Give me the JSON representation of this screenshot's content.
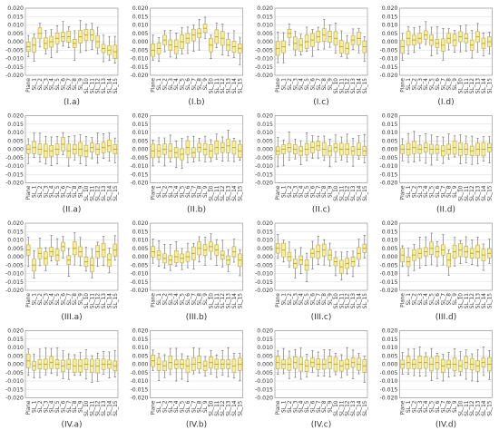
{
  "figure": {
    "colors": {
      "box_fill": "#f7ef9f",
      "box_stroke": "#b8a74a",
      "median": "#c8a200",
      "whisker": "#666666",
      "grid": "#d9d9d9",
      "frame": "#999999"
    }
  },
  "chart_data": [
    {
      "type": "box",
      "caption": "(I.a)",
      "categories": [
        "Plane",
        "SL_1",
        "SL_2",
        "SL_3",
        "SL_4",
        "SL_5",
        "SL_6",
        "SL_7",
        "SL_8",
        "SL_9",
        "SL_10",
        "SL_11",
        "SL_12",
        "SL_13",
        "SL_14",
        "SL_15"
      ],
      "medians": [
        -0.003,
        -0.002,
        0.005,
        -0.001,
        0.0,
        0.002,
        0.003,
        0.003,
        -0.001,
        0.003,
        0.004,
        0.004,
        0.0,
        -0.004,
        -0.005,
        -0.006
      ],
      "ylim": [
        -0.02,
        0.02
      ],
      "yticks": [
        "-0.020",
        "-0.015",
        "-0.010",
        "-0.005",
        "0.000",
        "0.005",
        "0.010",
        "0.015",
        "0.020"
      ]
    },
    {
      "type": "box",
      "caption": "(I.b)",
      "categories": [
        "Plane",
        "SL_1",
        "SL_2",
        "SL_3",
        "SL_4",
        "SL_5",
        "SL_6",
        "SL_7",
        "SL_8",
        "SL_9",
        "SL_10",
        "SL_11",
        "SL_12",
        "SL_13",
        "SL_14",
        "SL_15"
      ],
      "medians": [
        -0.005,
        -0.004,
        0.001,
        -0.002,
        -0.003,
        0.0,
        0.002,
        0.004,
        0.005,
        0.008,
        -0.002,
        0.003,
        0.002,
        -0.002,
        -0.003,
        -0.004
      ],
      "ylim": [
        -0.02,
        0.02
      ],
      "yticks": [
        "-0.020",
        "-0.015",
        "-0.010",
        "-0.005",
        "0.000",
        "0.005",
        "0.010",
        "0.015",
        "0.020"
      ]
    },
    {
      "type": "box",
      "caption": "(I.c)",
      "categories": [
        "Plane",
        "SL_1",
        "SL_2",
        "SL_3",
        "SL_4",
        "SL_5",
        "SL_6",
        "SL_7",
        "SL_8",
        "SL_9",
        "SL_10",
        "SL_11",
        "SL_12",
        "SL_13",
        "SL_14",
        "SL_15"
      ],
      "medians": [
        -0.004,
        -0.003,
        0.005,
        -0.001,
        -0.002,
        0.0,
        0.001,
        0.003,
        0.004,
        0.003,
        0.002,
        -0.003,
        -0.004,
        0.001,
        0.002,
        -0.003
      ],
      "ylim": [
        -0.02,
        0.02
      ],
      "yticks": [
        "-0.020",
        "-0.015",
        "-0.010",
        "-0.005",
        "0.000",
        "0.005",
        "0.010",
        "0.015",
        "0.020"
      ]
    },
    {
      "type": "box",
      "caption": "(I.d)",
      "categories": [
        "Plane",
        "SL_1",
        "SL_2",
        "SL_3",
        "SL_4",
        "SL_5",
        "SL_6",
        "SL_7",
        "SL_8",
        "SL_9",
        "SL_10",
        "SL_11",
        "SL_12",
        "SL_13",
        "SL_14",
        "SL_15"
      ],
      "medians": [
        -0.003,
        0.002,
        0.001,
        0.002,
        0.004,
        0.001,
        -0.001,
        -0.002,
        0.002,
        0.001,
        0.003,
        0.002,
        -0.002,
        0.003,
        -0.001,
        0.0
      ],
      "ylim": [
        -0.02,
        0.02
      ],
      "yticks": [
        "-0.020",
        "-0.015",
        "-0.010",
        "-0.005",
        "0.000",
        "0.005",
        "0.010",
        "0.015",
        "0.020"
      ]
    },
    {
      "type": "box",
      "caption": "(II.a)",
      "categories": [
        "Plane",
        "SL_1",
        "SL_2",
        "SL_3",
        "SL_4",
        "SL_5",
        "SL_6",
        "SL_7",
        "SL_8",
        "SL_9",
        "SL_10",
        "SL_11",
        "SL_12",
        "SL_13",
        "SL_14",
        "SL_15"
      ],
      "medians": [
        0.0,
        0.001,
        0.0,
        -0.001,
        -0.001,
        0.0,
        0.003,
        -0.001,
        0.0,
        0.0,
        -0.001,
        0.001,
        0.0,
        0.001,
        0.002,
        0.0
      ],
      "ylim": [
        -0.02,
        0.02
      ],
      "yticks": [
        "-0.020",
        "-0.015",
        "-0.010",
        "-0.005",
        "0.000",
        "0.005",
        "0.010",
        "0.015",
        "0.020"
      ]
    },
    {
      "type": "box",
      "caption": "(II.b)",
      "categories": [
        "Plane",
        "SL_1",
        "SL_2",
        "SL_3",
        "SL_4",
        "SL_5",
        "SL_6",
        "SL_7",
        "SL_8",
        "SL_9",
        "SL_10",
        "SL_11",
        "SL_12",
        "SL_13",
        "SL_14",
        "SL_15"
      ],
      "medians": [
        -0.001,
        -0.001,
        0.0,
        -0.001,
        -0.002,
        -0.003,
        0.001,
        -0.002,
        0.001,
        0.0,
        -0.001,
        0.001,
        0.001,
        0.002,
        0.001,
        -0.001
      ],
      "ylim": [
        -0.02,
        0.02
      ],
      "yticks": [
        "-0.020",
        "-0.015",
        "-0.010",
        "-0.005",
        "0.000",
        "0.005",
        "0.010",
        "0.015",
        "0.020"
      ]
    },
    {
      "type": "box",
      "caption": "(II.c)",
      "categories": [
        "Plane",
        "SL_1",
        "SL_2",
        "SL_3",
        "SL_4",
        "SL_5",
        "SL_6",
        "SL_7",
        "SL_8",
        "SL_9",
        "SL_10",
        "SL_11",
        "SL_12",
        "SL_13",
        "SL_14",
        "SL_15"
      ],
      "medians": [
        -0.001,
        0.0,
        0.001,
        0.0,
        -0.001,
        0.0,
        0.001,
        0.002,
        0.0,
        -0.001,
        0.001,
        0.0,
        0.0,
        -0.001,
        0.0,
        -0.001
      ],
      "ylim": [
        -0.02,
        0.02
      ],
      "yticks": [
        "-0.020",
        "-0.015",
        "-0.010",
        "-0.005",
        "0.000",
        "0.005",
        "0.010",
        "0.015",
        "0.020"
      ]
    },
    {
      "type": "box",
      "caption": "(II.d)",
      "categories": [
        "Plane",
        "SL_1",
        "SL_2",
        "SL_3",
        "SL_4",
        "SL_5",
        "SL_6",
        "SL_7",
        "SL_8",
        "SL_9",
        "SL_10",
        "SL_11",
        "SL_12",
        "SL_13",
        "SL_14",
        "SL_15"
      ],
      "medians": [
        0.0,
        0.0,
        0.001,
        0.0,
        0.001,
        0.0,
        0.0,
        -0.001,
        0.0,
        0.001,
        0.0,
        0.0,
        -0.001,
        0.0,
        0.0,
        0.001
      ],
      "ylim": [
        -0.02,
        0.02
      ],
      "yticks": [
        "-0.020",
        "-0.015",
        "-0.010",
        "-0.005",
        "0.000",
        "0.005",
        "0.010",
        "0.015",
        "0.020"
      ]
    },
    {
      "type": "box",
      "caption": "(III.a)",
      "categories": [
        "Plane",
        "SL_1",
        "SL_2",
        "SL_3",
        "SL_4",
        "SL_5",
        "SL_6",
        "SL_7",
        "SL_8",
        "SL_9",
        "SL_10",
        "SL_11",
        "SL_12",
        "SL_13",
        "SL_14",
        "SL_15"
      ],
      "medians": [
        0.004,
        -0.005,
        0.002,
        -0.001,
        0.003,
        0.001,
        0.006,
        -0.002,
        0.005,
        0.003,
        -0.003,
        -0.005,
        0.003,
        0.004,
        -0.002,
        0.004
      ],
      "ylim": [
        -0.02,
        0.02
      ],
      "yticks": [
        "-0.020",
        "-0.015",
        "-0.010",
        "-0.005",
        "0.000",
        "0.005",
        "0.010",
        "0.015",
        "0.020"
      ]
    },
    {
      "type": "box",
      "caption": "(III.b)",
      "categories": [
        "Plane",
        "SL_1",
        "SL_2",
        "SL_3",
        "SL_4",
        "SL_5",
        "SL_6",
        "SL_7",
        "SL_8",
        "SL_9",
        "SL_10",
        "SL_11",
        "SL_12",
        "SL_13",
        "SL_14",
        "SL_15"
      ],
      "medians": [
        0.003,
        0.001,
        -0.001,
        -0.002,
        0.0,
        -0.001,
        0.0,
        0.002,
        0.005,
        0.004,
        0.006,
        0.004,
        0.001,
        -0.002,
        0.003,
        -0.002
      ],
      "ylim": [
        -0.02,
        0.02
      ],
      "yticks": [
        "-0.020",
        "-0.015",
        "-0.010",
        "-0.005",
        "0.000",
        "0.005",
        "0.010",
        "0.015",
        "0.020"
      ]
    },
    {
      "type": "box",
      "caption": "(III.c)",
      "categories": [
        "Plane",
        "SL_1",
        "SL_2",
        "SL_3",
        "SL_4",
        "SL_5",
        "SL_6",
        "SL_7",
        "SL_8",
        "SL_9",
        "SL_10",
        "SL_11",
        "SL_12",
        "SL_13",
        "SL_14",
        "SL_15"
      ],
      "medians": [
        0.005,
        0.004,
        0.0,
        -0.004,
        -0.002,
        -0.005,
        0.002,
        0.003,
        0.004,
        0.001,
        -0.003,
        -0.006,
        -0.004,
        -0.003,
        0.002,
        0.005
      ],
      "ylim": [
        -0.02,
        0.02
      ],
      "yticks": [
        "-0.020",
        "-0.015",
        "-0.010",
        "-0.005",
        "0.000",
        "0.005",
        "0.010",
        "0.015",
        "0.020"
      ]
    },
    {
      "type": "box",
      "caption": "(III.d)",
      "categories": [
        "Plane",
        "SL_1",
        "SL_2",
        "SL_3",
        "SL_4",
        "SL_5",
        "SL_6",
        "SL_7",
        "SL_8",
        "SL_9",
        "SL_10",
        "SL_11",
        "SL_12",
        "SL_13",
        "SL_14",
        "SL_15"
      ],
      "medians": [
        0.001,
        -0.003,
        0.001,
        0.002,
        0.003,
        0.005,
        0.003,
        0.004,
        -0.002,
        0.003,
        0.004,
        0.003,
        0.002,
        0.003,
        0.001,
        0.002
      ],
      "ylim": [
        -0.02,
        0.02
      ],
      "yticks": [
        "-0.020",
        "-0.015",
        "-0.010",
        "-0.005",
        "0.000",
        "0.005",
        "0.010",
        "0.015",
        "0.020"
      ]
    },
    {
      "type": "box",
      "caption": "(IV.a)",
      "categories": [
        "Plane",
        "SL_1",
        "SL_2",
        "SL_3",
        "SL_4",
        "SL_5",
        "SL_6",
        "SL_7",
        "SL_8",
        "SL_9",
        "SL_10",
        "SL_11",
        "SL_12",
        "SL_13",
        "SL_14",
        "SL_15"
      ],
      "medians": [
        0.002,
        -0.001,
        0.0,
        0.0,
        0.001,
        0.0,
        -0.001,
        0.0,
        -0.001,
        -0.001,
        0.0,
        -0.001,
        -0.001,
        0.0,
        0.0,
        -0.001
      ],
      "ylim": [
        -0.02,
        0.02
      ],
      "yticks": [
        "-0.020",
        "-0.015",
        "-0.010",
        "-0.005",
        "0.000",
        "0.005",
        "0.010",
        "0.015",
        "0.020"
      ]
    },
    {
      "type": "box",
      "caption": "(IV.b)",
      "categories": [
        "Plane",
        "SL_1",
        "SL_2",
        "SL_3",
        "SL_4",
        "SL_5",
        "SL_6",
        "SL_7",
        "SL_8",
        "SL_9",
        "SL_10",
        "SL_11",
        "SL_12",
        "SL_13",
        "SL_14",
        "SL_15"
      ],
      "medians": [
        0.002,
        0.0,
        -0.001,
        0.001,
        0.0,
        0.0,
        -0.001,
        0.0,
        0.001,
        -0.001,
        0.001,
        0.0,
        0.0,
        0.0,
        -0.001,
        0.0
      ],
      "ylim": [
        -0.02,
        0.02
      ],
      "yticks": [
        "-0.020",
        "-0.015",
        "-0.010",
        "-0.005",
        "0.000",
        "0.005",
        "0.010",
        "0.015",
        "0.020"
      ]
    },
    {
      "type": "box",
      "caption": "(IV.c)",
      "categories": [
        "Plane",
        "SL_1",
        "SL_2",
        "SL_3",
        "SL_4",
        "SL_5",
        "SL_6",
        "SL_7",
        "SL_8",
        "SL_9",
        "SL_10",
        "SL_11",
        "SL_12",
        "SL_13",
        "SL_14",
        "SL_15"
      ],
      "medians": [
        0.001,
        0.0,
        0.0,
        0.001,
        0.0,
        -0.001,
        0.001,
        0.0,
        0.0,
        0.001,
        0.0,
        -0.001,
        0.0,
        0.001,
        0.0,
        -0.001
      ],
      "ylim": [
        -0.02,
        0.02
      ],
      "yticks": [
        "-0.020",
        "-0.015",
        "-0.010",
        "-0.005",
        "0.000",
        "0.005",
        "0.010",
        "0.015",
        "0.020"
      ]
    },
    {
      "type": "box",
      "caption": "(IV.d)",
      "categories": [
        "Plane",
        "SL_1",
        "SL_2",
        "SL_3",
        "SL_4",
        "SL_5",
        "SL_6",
        "SL_7",
        "SL_8",
        "SL_9",
        "SL_10",
        "SL_11",
        "SL_12",
        "SL_13",
        "SL_14",
        "SL_15"
      ],
      "medians": [
        0.0,
        0.001,
        0.0,
        0.001,
        0.001,
        0.0,
        0.001,
        -0.001,
        0.0,
        0.0,
        -0.001,
        0.001,
        0.0,
        -0.001,
        0.001,
        0.0
      ],
      "ylim": [
        -0.02,
        0.02
      ],
      "yticks": [
        "-0.020",
        "-0.015",
        "-0.010",
        "-0.005",
        "0.000",
        "0.005",
        "0.010",
        "0.015",
        "0.020"
      ]
    }
  ]
}
